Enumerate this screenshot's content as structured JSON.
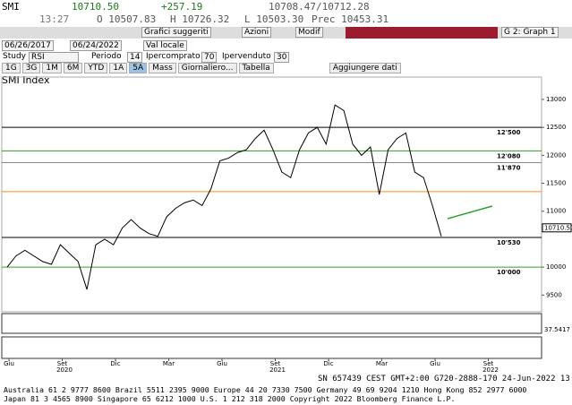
{
  "header": {
    "ticker": "SMI",
    "last": "10710.50",
    "change": "+257.19",
    "bid_ask": "10708.47/10712.28",
    "time": "13:27",
    "open": "O 10507.83",
    "high": "H 10726.32",
    "low": "L 10503.30",
    "prev": "Prec 10453.31"
  },
  "toolbar": {
    "suggested": "Grafici suggeriti",
    "actions": "Azioni",
    "edit": "Modif",
    "graph": "G 2: Graph 1"
  },
  "controls": {
    "date_from": "06/26/2017",
    "date_to": "06/24/2022",
    "currency": "Val locale",
    "study_label": "Study",
    "study": "RSI",
    "period_label": "Periodo",
    "period": "14",
    "overbought_label": "Ipercomprato",
    "overbought": "70",
    "oversold_label": "Ipervenduto",
    "oversold": "30"
  },
  "tabs": [
    "1G",
    "3G",
    "1M",
    "6M",
    "YTD",
    "1A",
    "5A",
    "Mass",
    "Giornaliero...",
    "Tabella",
    "Aggiungere dati"
  ],
  "chart": {
    "title": "SMI Index",
    "ylim": [
      9200,
      13400
    ],
    "yticks": [
      {
        "value": 9500,
        "label": "9500"
      },
      {
        "value": 10000,
        "label": "10000"
      },
      {
        "value": 11000,
        "label": "11000"
      },
      {
        "value": 11500,
        "label": "11500"
      },
      {
        "value": 12000,
        "label": "12000"
      },
      {
        "value": 12500,
        "label": "12500"
      },
      {
        "value": 13000,
        "label": "13000"
      }
    ],
    "levels": [
      {
        "value": 12500,
        "label": "12'500",
        "color": "#000000"
      },
      {
        "value": 12080,
        "label": "12'080",
        "color": "#2ca02c"
      },
      {
        "value": 11870,
        "label": "11'870",
        "color": "#888888"
      },
      {
        "value": 11350,
        "color": "#ff8c1a"
      },
      {
        "value": 10530,
        "label": "10'530",
        "color": "#000000"
      },
      {
        "value": 10000,
        "label": "10'000",
        "color": "#2ca02c"
      }
    ],
    "last_label": "10710.50",
    "prices": [
      10000,
      10200,
      10300,
      10200,
      10100,
      10050,
      10400,
      10250,
      10100,
      9600,
      10400,
      10500,
      10400,
      10700,
      10850,
      10700,
      10600,
      10550,
      10900,
      11050,
      11150,
      11200,
      11100,
      11400,
      11900,
      11950,
      12050,
      12100,
      12300,
      12450,
      12100,
      11700,
      11600,
      12100,
      12400,
      12500,
      12200,
      12900,
      12800,
      12200,
      12000,
      12150,
      11300,
      12100,
      12300,
      12400,
      11700,
      11600,
      11100,
      10550
    ],
    "color": "#000000",
    "rsi_label": "37.5417",
    "months": [
      "Giu",
      "Set",
      "Dic",
      "Mar",
      "Giu",
      "Set",
      "Dic",
      "Mar",
      "Giu",
      "Set"
    ],
    "years": [
      "2020",
      "2021",
      "2022"
    ]
  },
  "footer": {
    "status": "SN 657439 CEST GMT+2:00 G720-2888-170 24-Jun-2022 13:27",
    "line1": "Australia 61 2 9777 8600 Brazil 5511 2395 9000 Europe 44 20 7330 7500 Germany 49 69 9204 1210 Hong Kong 852 2977 6000",
    "line2": "Japan 81 3 4565 8900        Singapore 65 6212 1000        U.S. 1 212 318 2000        Copyright 2022 Bloomberg Finance L.P."
  }
}
